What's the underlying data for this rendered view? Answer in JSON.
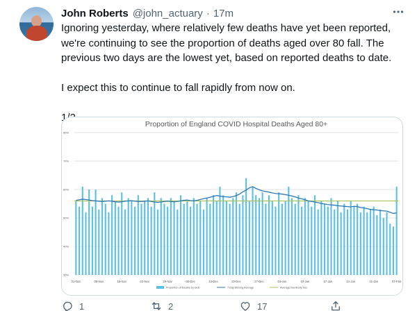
{
  "tweet": {
    "author_name": "John Roberts",
    "handle": "@john_actuary",
    "separator": "·",
    "time": "17m",
    "lines_para1": [
      "Ignoring yesterday, where relatively few deaths have yet been reported,",
      "we're continuing to see the proportion of deaths aged over 80 fall. The",
      "previous two days are the lowest yet, based on reported deaths to date."
    ],
    "para2": "I expect this to continue to fall rapidly from now on.",
    "para3": "1/2",
    "reply_count": "1",
    "retweet_count": "2",
    "like_count": "17"
  },
  "icons": {
    "more": "more-dots-icon",
    "reply": "reply-icon",
    "retweet": "retweet-icon",
    "like": "heart-icon",
    "share": "share-icon"
  },
  "chart_data": {
    "type": "bar",
    "title": "Proportion of England COVID Hospital Deaths Aged 80+",
    "ylim": [
      30,
      80
    ],
    "yticks": [
      "80%",
      "70%",
      "60%",
      "50%",
      "40%",
      "30%"
    ],
    "ytick_values": [
      80,
      70,
      60,
      50,
      40,
      30
    ],
    "xtick_labels": [
      "01-Nov",
      "08-Nov",
      "15-Nov",
      "22-Nov",
      "29-Nov",
      "06-Dec",
      "13-Dec",
      "20-Dec",
      "27-Dec",
      "03-Jan",
      "10-Jan",
      "17-Jan",
      "24-Jan",
      "31-Jan",
      "07-Feb"
    ],
    "x_start": "01-Nov",
    "x_end": "07-Feb",
    "grid": true,
    "legend_position": "bottom",
    "colors": {
      "bars": "#5bc0e6",
      "moving_average": "#2e75b6",
      "early_dec_average": "#a9c15a",
      "gridline": "#d9d9d9",
      "title": "#595959"
    },
    "series": [
      {
        "name": "Proportion of Deaths by DoD",
        "kind": "bar",
        "values": [
          56,
          54,
          61,
          52,
          60,
          54,
          60,
          53,
          57,
          55,
          52,
          58,
          56,
          54,
          59,
          53,
          57,
          56,
          54,
          58,
          55,
          56,
          57,
          54,
          59,
          53,
          57,
          55,
          54,
          57,
          56,
          53,
          58,
          55,
          56,
          54,
          57,
          55,
          56,
          53,
          57,
          55,
          58,
          56,
          61,
          58,
          56,
          55,
          57,
          59,
          55,
          58,
          64,
          56,
          61,
          58,
          57,
          59,
          55,
          58,
          56,
          54,
          59,
          55,
          56,
          61,
          57,
          55,
          58,
          54,
          57,
          56,
          54,
          58,
          53,
          56,
          55,
          54,
          57,
          53,
          56,
          52,
          55,
          53,
          56,
          54,
          55,
          52,
          54,
          52,
          53,
          54,
          51,
          53,
          50,
          52,
          48,
          47,
          61
        ]
      },
      {
        "name": "7 Day Moving Average",
        "kind": "line",
        "values": [
          56.2,
          56.4,
          56.6,
          56.5,
          56.3,
          56.1,
          56.0,
          55.9,
          55.8,
          55.9,
          56.0,
          55.9,
          55.7,
          55.6,
          55.7,
          55.9,
          56.0,
          56.1,
          55.9,
          55.8,
          55.8,
          55.9,
          56.0,
          55.8,
          55.6,
          55.5,
          55.6,
          55.8,
          55.9,
          55.8,
          55.7,
          55.8,
          56.0,
          56.2,
          56.3,
          56.1,
          56.0,
          56.2,
          56.5,
          56.8,
          57.0,
          57.3,
          57.6,
          57.9,
          57.7,
          57.5,
          57.4,
          57.3,
          57.5,
          57.9,
          58.4,
          59.2,
          59.8,
          60.6,
          61.0,
          60.4,
          59.9,
          59.5,
          59.3,
          59.1,
          58.8,
          58.6,
          58.5,
          58.4,
          58.2,
          58.0,
          57.7,
          57.4,
          57.0,
          56.7,
          56.4,
          56.0,
          55.8,
          55.6,
          55.4,
          55.1,
          54.9,
          54.7,
          54.6,
          54.5,
          54.3,
          54.2,
          54.1,
          54.0,
          53.9,
          54.1,
          54.0,
          53.7,
          53.5,
          53.3,
          53.0,
          52.9,
          52.8,
          52.6,
          52.5,
          52.4,
          52.0,
          51.6,
          51.8
        ]
      },
      {
        "name": "Average Nov/Early Dec",
        "kind": "line",
        "values": [
          56.0,
          56.0
        ]
      }
    ]
  }
}
